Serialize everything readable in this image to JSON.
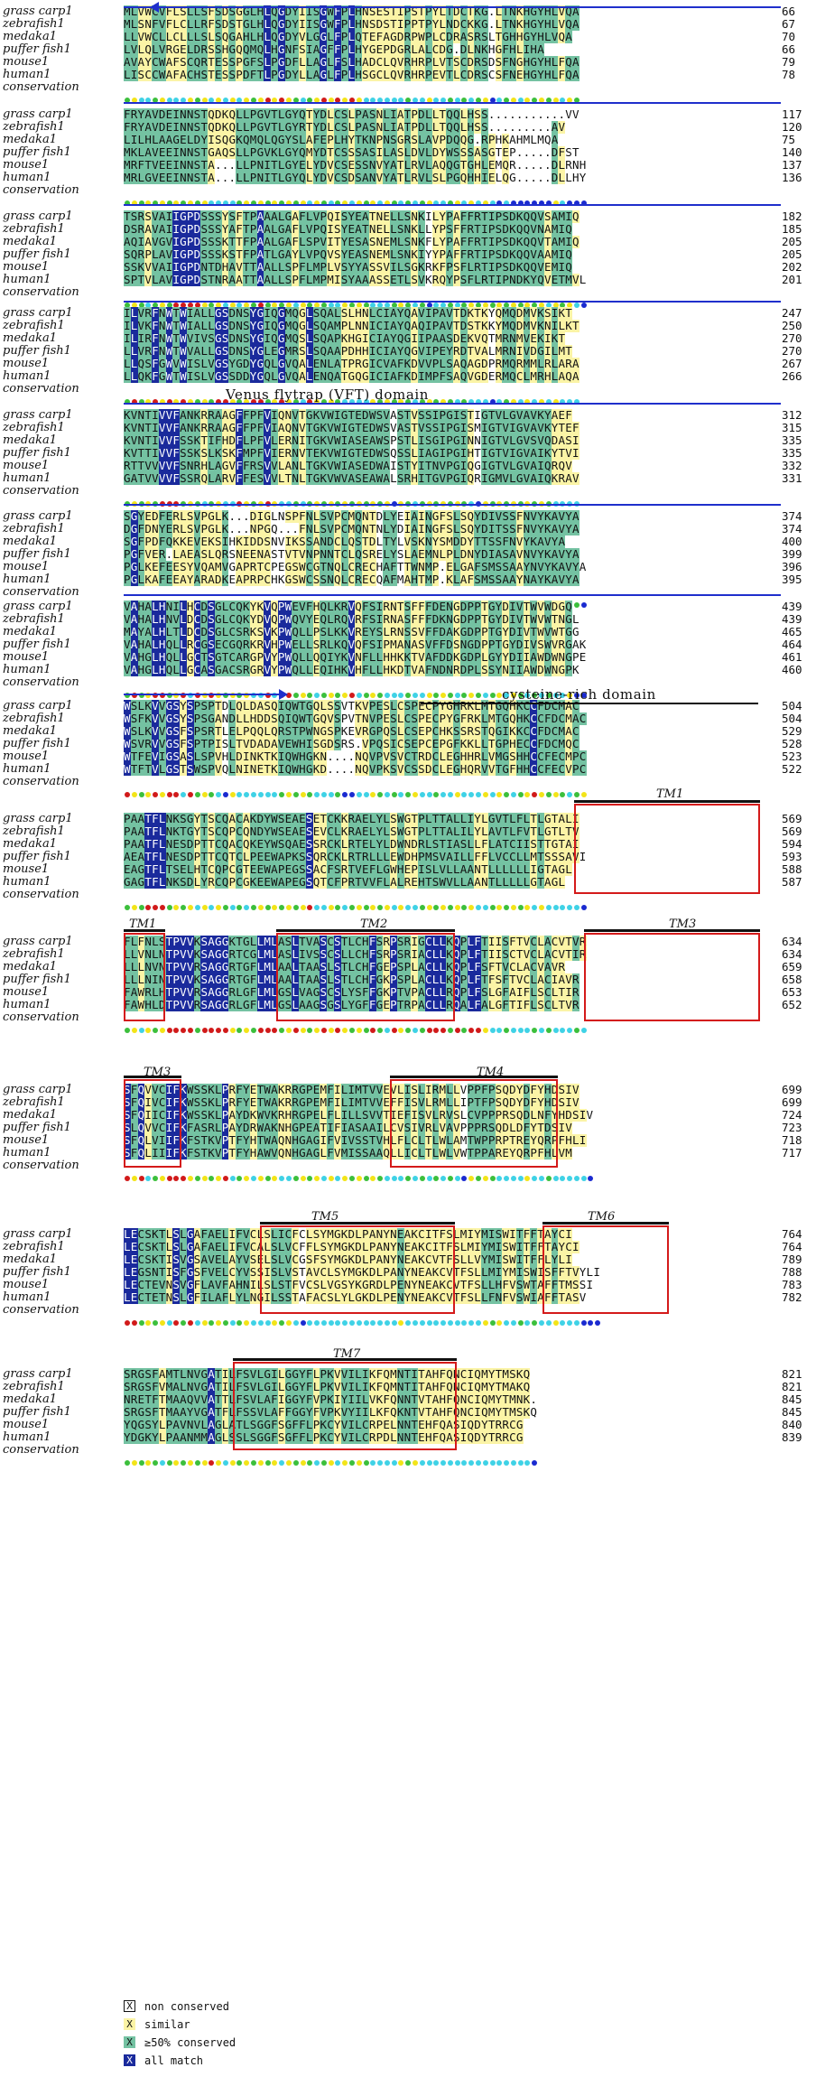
{
  "species": [
    "grass carp1",
    "zebrafish1",
    "medaka1",
    "puffer fish1",
    "mouse1",
    "human1"
  ],
  "conservation_label": "conservation",
  "blocks": [
    {
      "rows": [
        "MLVWCVFLSLLSFSDSGGLHLQGDYIISGWFPLHNSESTIPSTPYLTDCTKG.LTNKHGYHLVQA",
        "MLSNFVFLCLLRFSDSTGLHLQGDYIISGWFPLHNSDSTIPPTPYLNDCKKG.LTNKHGYHLVQA",
        "LLVWCLLCLLLSLSQGAHLHLQGDYVLGGLFPLQTEFAGDRPWPLCDRASRSLTGHHGYHLVQA",
        "LVLQLVRGELDRSSHGQQMQLHGNFSIAGFFPLHYGEPDGRLALCDG.DLNKHGFHLIHA",
        "AVAYCWAFSCQRTESSPGFSLPGDFLLAGLFSLHADCLQVRHRPLVTSCDRSDSFNGHGYHLFQA",
        "LISCCWAFACHSTESSPDFTLPGDYLLAGLFPLHSGCLQVRHRPEVTLCDRSCSFNEHGYHLFQA"
      ],
      "ends": [
        "66",
        "67",
        "70",
        "66",
        "79",
        "78"
      ]
    },
    {
      "rows": [
        "FRYAVDEINNSTQDKQLLPGVTLGYQTYDLCSLPASNLIATPDLLTQQLHSS...........VV",
        "FRYAVDEINNSTQDKQLLPGVTLGYRTYDLCSLPASNLIATPDLLTQQLHSS.........AV",
        "LILHLAAGELDYISQGKQMQLQGYSLAFEPLHYTKNPNSGRSLAVPDQQG.RPHKAHMLMQA",
        "MKLAVEEINNSTGAQSLLPGVKLGYQMYDTCSSSASILASLDVLDYWSSSASGTEP.....DFST",
        "MRFTVEEINNSTA...LLPNITLGYELYDVCSESSNVYATLRVLAQQGTGHLEMQR.....DLRNH",
        "MRLGVEEINNSTA...LLPNITLGYQLYDVCSDSANVYATLRVLSLPGQHHIELQG.....DLLHY"
      ],
      "ends": [
        "117",
        "120",
        "75",
        "140",
        "137",
        "136"
      ]
    },
    {
      "rows": [
        "TSRSVAIIGPDSSSYSFTPAAALGAFLVPQISYEATNELLSNKILYPAFFRTIPSDKQQVSAMIQ",
        "DSRAVAIIGPDSSSYAFTPAALGAFLVPQISYEATNELLSNKLLYPSFFRTIPSDKQQVNAMIQ",
        "AQIAVGVIGPDSSSKTTFPAALGAFLSPVITYESASNEMLSNKFLYPAFFRTIPSDKQQVTAMIQ",
        "SQRPLAVIGPDSSSKSTFPATLGAYLVPQVSYEASNEMLSNKIYYPAFFRTIPSDKQQVAAMIQ",
        "SSKVVAIIGPDNTDHAVTTAALLSPFLMPLVSYYASSVILSGKRKFPSFLRTIPSDKQQVEMIQ",
        "SPTVLAVIGPDSTNRAATTAALLSPFLMPMISYAAASSETLSVKRQYPSFLRTIPNDKYQVETMVL"
      ],
      "ends": [
        "182",
        "185",
        "205",
        "205",
        "202",
        "201"
      ]
    },
    {
      "rows": [
        "ILVRFNWTWIALLGSDNSYGIQGMQGLSQALSLHNLCIAYQAVIPAVTDKTKYQMQDMVKSIKT",
        "ILVKFNWTWIALLGSDNSYGIQGMQGLSQAMPLNNICIAYQAQIPAVTDSTKKYMQDMVKNILKT",
        "ILIRFNWTWVIVSGSDNSYGIQGMQSLSQAPKHGICIAYQGIIPAASDEKVQTMRNMVEKIKT",
        "LLVRFNWTWVALLGSDNSYGLEGMRSLSQAAPDHHICIAYQGVIPEYRDTVALMRNIVDGILMT",
        "LLQSFGWVWISLVGSYGDYGQLGVQALENLATPRGICVAFKDVVPLSAQAGDPRMQRMMLRLARA",
        "LLQKFGWTWISLVGSSDDYGQLGVQALENQATGQGICIAFKDIMPFSAQVGDERMQCLMRHLAQA"
      ],
      "ends": [
        "247",
        "250",
        "270",
        "270",
        "267",
        "266"
      ]
    },
    {
      "rows": [
        "KVNTIVVFANKRRAAGFFPFVIQNVTGKVWIGTEDWSVASTVSSIPGISTIGTVLGVAVKYAEF",
        "KVNTIVVFANKRRAAGFFPFVIAQNVTGKVWIGTEDWSVASTVSSIPGISMIGTVIGVAVKYTEF",
        "KVNTIVVFSSKTIFHDFLPFVLERNITGKVWIASEAWSPSTLISGIPGINNIGTVLGVSVQDASI",
        "KVTTIVVFSSKSLKSKFMPFVIERNVTEKVWIGTEDWSQSSLIAGIPGIHTIGTVIGVAIKYTVI",
        "RTTVVVVFSNRHLAGVFFRSVVLANLTGKVWIASEDWAISTYITNVPGIQGIGTVLGVAIQRQV",
        "GATVVVVFSSRQLARVFFESVVLTNLTGKVWVASEAWALSRHITGVPGIQRIGMVLGVAIQKRAV"
      ],
      "ends": [
        "312",
        "315",
        "335",
        "335",
        "332",
        "331"
      ]
    },
    {
      "rows": [
        "SGYEDFERLSVPGLK...DIGLNSPFNLSVPCMQNTDLYEIAINGFSLSQYDIVSSFNVYKAVYA",
        "DGFDNYERLSVPGLK...NPGQ...FNLSVPCMQNTNLYDIAINGFSLSQYDITSSFNVYKAVYA",
        "SGFPDFQKKEVEKSIHKIDDSNVIKSSANDCLQSTDLTYLVSKNYSMDDYTTSSFNVYKAVYA",
        "PGFVER.LAEASLQRSNEENASTVTVNPNNTCLQSRELYSLAEMNLPLDNYDIASAVNVYKAVYA",
        "PGLKEFEESYVQAMVGAPRTCPEGSWCGTNQLCRECHAFTTWNMP.ELGAFSMSSAAYNVYKAVYA",
        "PGLKAFEEAYARADKEAPRPCHKGSWCSSNQLCRECQAFMAHTMP.KLAFSMSSAAYNAYKAVYA"
      ],
      "ends": [
        "374",
        "374",
        "400",
        "399",
        "396",
        "395"
      ]
    },
    {
      "rows": [
        "VAHALHNILHCDSGLCQKYKVQPWEVFHQLKRVQFSIRNTSFFFDENGDPPTGYDIVTWVWDGQ",
        "VAHALHNVLDCDSGLCQKYDVQPWQVYEQLRQVRFSIRNASFFFDKNGDPPTGYDIVTWVWTNGL",
        "MAYALHLTLDCDSGLCSRKSVKPWQLLPSLKKVREYSLRNSSVFFDAKGDPPTGYDIVTWVWTGG",
        "VAHALHQLLRCGSECGQRKRVHPWELLSRLKQVQFSIPMANASVFFDSNGDPPTGYDIVSWVRGAK",
        "VAHGLHQLLGCTSGTCARGPVYPWQLLQQIYKVNFLLHHKKTVAFDDKGDPLGYYDIIAWDWNGPE",
        "VAHGLHQLLGCASGACSRGRVYPWQLLEQIHKVHFLLHKDTVAFNDNRDPLSSYNIIAWDWNGPK"
      ],
      "ends": [
        "439",
        "439",
        "465",
        "464",
        "461",
        "460"
      ]
    },
    {
      "rows": [
        "WSLKVVGSYSPSPTDLQLDASQIQWTGQLSSVTKVPESLCSPECPYGHRKLMTGQHKCCFDCMAC",
        "WSFKVVGSYSPSGANDLLHDDSQIQWTGQVSPVTNVPESLCSPECPYGFRKLMTGQHKCCFDCMAC",
        "WSLKVVGSFSPSRTLELPQQLQRSTPWNGSPKEVRGPQSLCSEPCHKSSRSTQGIKKCCFDCMAC",
        "WSVRVVGSFSPTPISLTVDADAVEWHISGDSRS.VPQSICSEPCEPGFKKLLTGPHECCFDCMQC",
        "WTFEVIGSASLSPVHLDINKTKIQWHGKN....NQVPVSVCTRDCLEGHHRLVMGSHHCCFECMPC",
        "WTFTVLGSTSWSPVQLNINETKIQWHGKD....NQVPKSVCSSDCLEGHQRVVTGFHHCCFECVPC"
      ],
      "ends": [
        "504",
        "504",
        "529",
        "528",
        "523",
        "522"
      ]
    },
    {
      "rows": [
        "PAATFLNKSGYTSCQACAKDYWSEAESETCKKRAELYLSWGTPLTTALLIYLGVTLFLTLGTALI",
        "PAATFLNKTGYTSCQPCQNDYWSEAESEVCLKRAELYLSWGTPLTTALILYLAVTLFVTLGTLTV",
        "PAATFLNESDPTTCQACQKEYWSQAESSRCKLRTELYLDWNDRLSTIASLLFLATCIISTTGTAI",
        "AEATFLNESDPTTCQTCLPEEWAPKSSQRCKLRTRLLLEWDHPMSVAILLFFLVCCLLMTSSSAVI",
        "EAGTFLTSELHTCQPCGTEEWAPEGSSACFSRTVEFLGWHEPISLVLLAANTLLLLLLIGTAGL",
        "GAGTFLNKSDLYRCQPCGKEEWAPEGSQTCFPRTVVFLALREHTSWVLLAANTLLLLLGTAGL"
      ],
      "ends": [
        "569",
        "569",
        "594",
        "593",
        "588",
        "587"
      ]
    },
    {
      "rows": [
        "FLFNLSTPVVKSAGGKTGLLMLASLTVASCSTLCHFSRPSRIGCLLKQPLFTIISFTVCLACVTVR",
        "LLVNLNTPVVKSAGGRTCGLMLASLIVSSCSLLCHFSRPSRIACLLKQPLFTIISCTVCLACVTIR",
        "LLLNVNTPVVRSAGGRTGFLMLAALTAASLSTLCHFGEPSPLACLLKQPLFSFTVCLACVAVR",
        "LLLNINTPVVKSAGGRTGFLMLAALTAASLSTLCHFGKPSPLACLLKQPLFTFSFTVCLACIAVR",
        "FAWRLHTPVVRSAGGRLGFLMLGSLVAGSCSLYSFFGKPTVPACLLRQPLFSLGFAIFLSCLTIR",
        "FAWHLDTPVVRSAGGRLGFLMLGSLAAGSGSLYGFFGEPTRPACLLRQALFALGFTIFLSCLTVR"
      ],
      "ends": [
        "634",
        "634",
        "659",
        "658",
        "653",
        "652"
      ]
    },
    {
      "rows": [
        "SFQVVCIFKWSSKLPRFYETWAKRRGPEMFILIMTVVEVLISLIRMLLVPPFPSQDYDFYHDSIV",
        "SFQIVCIFKWSSKLPRFYETWAKRRGPEMFILIMTVVEFFISVLRMLLIPTFPSQDYDFYHDSIV",
        "SFQIICIFKWSSKLPAYDKWVKRHRGPELFLILLSVVTIEFISVLRVSLCVPPPRSQDLNFYHDSIV",
        "SLQVVCIFKFASRLPAYDRWAKNHGPEATIFIASAAILCVSIVRLVAVPPPRSQDLDFYTDSIV",
        "SFQLVIIFKFSTKVPTFYHTWAQNHGAGIFVIVSSTVHLFLCLTLWLAMTWPPRPTREYQRPFHLI",
        "SFQLIIIFKFSTKVPTFYHAWVQNHGAGLFVMISSAAQLLICLTLWLVWTPPAREYQRPFHLVM"
      ],
      "ends": [
        "699",
        "699",
        "724",
        "723",
        "718",
        "717"
      ]
    },
    {
      "rows": [
        "LECSKTLSLGAFAELIFVCLSLICFCLSYMGKDLPANYNEAKCITFSLMIYMISWITFFTAYCI",
        "LECSKTLSLGAFAELIFVCALSLVCFFLSYMGKDLPANYNEAKCITFSLMIYMISWITFFTAYCI",
        "LECSKTISVGSAVELAYVSELSLVCGSFSYMGKDLPANYNEAKCVTFSLLVYMISWITFFLYLI",
        "LEGSNTISFGSFVELCYVSSISLVSTAVCLSYMGKDLPANYNEAKCVTFSLLMIYMISWISFFTVYLI",
        "LECTEVNSVGFLAVFAHNILSLSTFVCSLVGSYKGRDLPENYNEAKCVTFSLLHFVSWTAFFTMSSI",
        "LECTETNSLGFILAFLYLNGILSSTAFACSLYLGKDLPENYNEAKCVTFSLLFNFVSWIAFFTASV"
      ],
      "ends": [
        "764",
        "764",
        "789",
        "788",
        "783",
        "782"
      ]
    },
    {
      "rows": [
        "SRGSFAMTLNVGATILFSVLGILGGYFLPKVVILIKFQMNTITAHFQNCIQMYTMSKQ",
        "SRGSFVMALNVGATILFSVLGILGGYFLPKVVILIKFQMNTITAHFQNCIQMYTMAKQ",
        "NRETFTMAAQVVATTLFSVLAFIGGYFVPKIYIILVKFQNNTVTAHFQNCIQMYTMNK.",
        "SRGSFTMAAYVGATFLFSSVLAFFGGYFVPKVYIILKFQKNTVTAHFQNCIQMYTMSKQ",
        "YQGSYLPAVNVLAGLATLSGGFSGFFLPKCYVILCRPELNNTEHFQASIQDYTRRCG",
        "YDGKYLPAANMMAGLSSLSGGFSGFFLPKCYVILCRPDLNNTEHFQASIQDYTRRCG"
      ],
      "ends": [
        "821",
        "821",
        "845",
        "845",
        "840",
        "839"
      ]
    }
  ],
  "annotations": {
    "vft_domain": "Venus flytrap (VFT) domain",
    "cys_domain": "cysteine-rich domain",
    "tm1": "TM1",
    "tm2": "TM2",
    "tm3": "TM3",
    "tm4": "TM4",
    "tm5": "TM5",
    "tm6": "TM6",
    "tm7": "TM7"
  },
  "legend": [
    {
      "symbol": "X",
      "label": "non conserved",
      "color": "#ffffff",
      "text_color": "#111111"
    },
    {
      "symbol": "X",
      "label": "similar",
      "color": "#fbf4a6",
      "text_color": "#111111"
    },
    {
      "symbol": "X",
      "label": "≥50% conserved",
      "color": "#74c2a2",
      "text_color": "#111111"
    },
    {
      "symbol": "X",
      "label": "all match",
      "color": "#1a2a9c",
      "text_color": "#ffffff"
    }
  ],
  "colors": {
    "all_match": "#1a2a9c",
    "conserved": "#74c2a2",
    "similar": "#fbf4a6",
    "dot_red": "#d11a1a",
    "dot_cyan": "#3fd2e6",
    "dot_yellow": "#f3e418",
    "dot_green": "#3cbf3c",
    "dot_blue": "#1a2ad0",
    "domain_bar": "#1f2fcc",
    "tm_box": "#d41a1a"
  }
}
